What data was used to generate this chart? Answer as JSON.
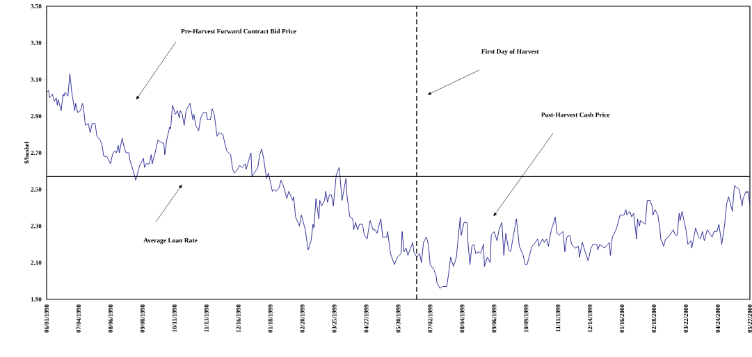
{
  "chart_data": {
    "type": "line",
    "ylabel": "$/bushel",
    "color": "#000080",
    "x": [
      "1998-06-01",
      "1998-06-03",
      "1998-06-04",
      "1998-06-07",
      "1998-06-09",
      "1998-06-11",
      "1998-06-12",
      "1998-06-13",
      "1998-06-16",
      "1998-06-18",
      "1998-06-19",
      "1998-06-20",
      "1998-06-23",
      "1998-06-25",
      "1998-06-27",
      "1998-06-30",
      "1998-07-01",
      "1998-07-03",
      "1998-07-06",
      "1998-07-08",
      "1998-07-09",
      "1998-07-11",
      "1998-07-14",
      "1998-07-16",
      "1998-07-18",
      "1998-07-21",
      "1998-07-23",
      "1998-07-26",
      "1998-07-28",
      "1998-07-30",
      "1998-08-02",
      "1998-08-06",
      "1998-08-08",
      "1998-08-10",
      "1998-08-12",
      "1998-08-14",
      "1998-08-15",
      "1998-08-18",
      "1998-08-20",
      "1998-08-22",
      "1998-08-25",
      "1998-08-26",
      "1998-08-29",
      "1998-09-01",
      "1998-09-05",
      "1998-09-09",
      "1998-09-10",
      "1998-09-12",
      "1998-09-15",
      "1998-09-17",
      "1998-09-18",
      "1998-09-21",
      "1998-09-24",
      "1998-09-26",
      "1998-09-30",
      "1998-10-01",
      "1998-10-03",
      "1998-10-06",
      "1998-10-07",
      "1998-10-09",
      "1998-10-12",
      "1998-10-14",
      "1998-10-16",
      "1998-10-17",
      "1998-10-19",
      "1998-10-21",
      "1998-10-23",
      "1998-10-27",
      "1998-10-30",
      "1998-10-31",
      "1998-11-02",
      "1998-11-05",
      "1998-11-07",
      "1998-11-10",
      "1998-11-13",
      "1998-11-14",
      "1998-11-17",
      "1998-11-19",
      "1998-11-21",
      "1998-11-24",
      "1998-11-26",
      "1998-11-30",
      "1998-12-02",
      "1998-12-04",
      "1998-12-08",
      "1998-12-10",
      "1998-12-12",
      "1998-12-15",
      "1998-12-17",
      "1998-12-20",
      "1998-12-23",
      "1998-12-24",
      "1998-12-29",
      "1998-12-30",
      "1999-01-05",
      "1999-01-07",
      "1999-01-09",
      "1999-01-11",
      "1999-01-14",
      "1999-01-16",
      "1999-01-20",
      "1999-01-22",
      "1999-01-24",
      "1999-01-27",
      "1999-01-29",
      "1999-02-01",
      "1999-02-04",
      "1999-02-06",
      "1999-02-10",
      "1999-02-11",
      "1999-02-13",
      "1999-02-17",
      "1999-02-19",
      "1999-02-21",
      "1999-02-23",
      "1999-02-26",
      "1999-03-01",
      "1999-03-03",
      "1999-03-04",
      "1999-03-06",
      "1999-03-09",
      "1999-03-10",
      "1999-03-12",
      "1999-03-15",
      "1999-03-16",
      "1999-03-18",
      "1999-03-20",
      "1999-03-22",
      "1999-03-24",
      "1999-03-27",
      "1999-03-30",
      "1999-04-02",
      "1999-04-06",
      "1999-04-07",
      "1999-04-10",
      "1999-04-13",
      "1999-04-14",
      "1999-04-16",
      "1999-04-18",
      "1999-04-20",
      "1999-04-23",
      "1999-04-25",
      "1999-04-28",
      "1999-04-29",
      "1999-05-01",
      "1999-05-04",
      "1999-05-06",
      "1999-05-08",
      "1999-05-09",
      "1999-05-12",
      "1999-05-14",
      "1999-05-18",
      "1999-05-19",
      "1999-05-22",
      "1999-05-26",
      "1999-05-29",
      "1999-06-02",
      "1999-06-03",
      "1999-06-05",
      "1999-06-07",
      "1999-06-09",
      "1999-06-11",
      "1999-06-14",
      "1999-06-15",
      "1999-06-18",
      "1999-06-21",
      "1999-06-23",
      "1999-06-25",
      "1999-06-28",
      "1999-06-30",
      "1999-07-02",
      "1999-07-06",
      "1999-07-08",
      "1999-07-09",
      "1999-07-12",
      "1999-07-15",
      "1999-07-19",
      "1999-07-21",
      "1999-07-23",
      "1999-07-26",
      "1999-07-29",
      "1999-08-02",
      "1999-08-03",
      "1999-08-06",
      "1999-08-09",
      "1999-08-10",
      "1999-08-12",
      "1999-08-14",
      "1999-08-16",
      "1999-08-18",
      "1999-08-21",
      "1999-08-23",
      "1999-08-26",
      "1999-08-27",
      "1999-08-30",
      "1999-09-02",
      "1999-09-03",
      "1999-09-06",
      "1999-09-09",
      "1999-09-11",
      "1999-09-14",
      "1999-09-16",
      "1999-09-18",
      "1999-09-21",
      "1999-09-23",
      "1999-09-29",
      "1999-10-02",
      "1999-10-06",
      "1999-10-08",
      "1999-10-10",
      "1999-10-12",
      "1999-10-15",
      "1999-10-17",
      "1999-10-21",
      "1999-10-22",
      "1999-10-26",
      "1999-10-28",
      "1999-10-30",
      "1999-11-01",
      "1999-11-04",
      "1999-11-06",
      "1999-11-08",
      "1999-11-10",
      "1999-11-12",
      "1999-11-16",
      "1999-11-18",
      "1999-11-20",
      "1999-11-23",
      "1999-11-25",
      "1999-11-29",
      "1999-12-02",
      "1999-12-03",
      "1999-12-06",
      "1999-12-09",
      "1999-12-12",
      "1999-12-15",
      "1999-12-17",
      "1999-12-21",
      "1999-12-22",
      "1999-12-24",
      "1999-12-29",
      "2000-01-03",
      "2000-01-04",
      "2000-01-06",
      "2000-01-09",
      "2000-01-11",
      "2000-01-14",
      "2000-01-18",
      "2000-01-20",
      "2000-01-21",
      "2000-01-24",
      "2000-01-26",
      "2000-01-28",
      "2000-01-31",
      "2000-02-01",
      "2000-02-03",
      "2000-02-04",
      "2000-02-09",
      "2000-02-11",
      "2000-02-14",
      "2000-02-16",
      "2000-02-17",
      "2000-02-19",
      "2000-02-22",
      "2000-02-24",
      "2000-02-25",
      "2000-02-28",
      "2000-03-01",
      "2000-03-04",
      "2000-03-09",
      "2000-03-11",
      "2000-03-13",
      "2000-03-15",
      "2000-03-16",
      "2000-03-18",
      "2000-03-22",
      "2000-03-24",
      "2000-03-27",
      "2000-03-28",
      "2000-04-01",
      "2000-04-04",
      "2000-04-06",
      "2000-04-08",
      "2000-04-10",
      "2000-04-13",
      "2000-04-18",
      "2000-04-20",
      "2000-04-23",
      "2000-04-25",
      "2000-04-28",
      "2000-05-01",
      "2000-05-03",
      "2000-05-05",
      "2000-05-09",
      "2000-05-11",
      "2000-05-16",
      "2000-05-19",
      "2000-05-20",
      "2000-05-23",
      "2000-05-24",
      "2000-05-25",
      "2000-05-27"
    ],
    "values": [
      3.03,
      3.04,
      3.0,
      3.02,
      2.98,
      3.0,
      2.96,
      2.99,
      2.93,
      3.02,
      3.01,
      3.03,
      3.01,
      3.13,
      3.03,
      2.93,
      2.97,
      2.92,
      2.93,
      2.97,
      2.95,
      2.85,
      2.86,
      2.81,
      2.86,
      2.86,
      2.79,
      2.77,
      2.75,
      2.68,
      2.68,
      2.64,
      2.69,
      2.71,
      2.7,
      2.74,
      2.7,
      2.78,
      2.73,
      2.7,
      2.7,
      2.66,
      2.61,
      2.55,
      2.63,
      2.67,
      2.62,
      2.64,
      2.64,
      2.69,
      2.64,
      2.7,
      2.77,
      2.76,
      2.75,
      2.69,
      2.77,
      2.84,
      2.83,
      2.96,
      2.91,
      2.93,
      2.89,
      2.93,
      2.91,
      2.85,
      2.93,
      2.97,
      2.88,
      2.91,
      2.85,
      2.82,
      2.89,
      2.92,
      2.92,
      2.88,
      2.88,
      2.94,
      2.91,
      2.79,
      2.81,
      2.8,
      2.75,
      2.71,
      2.69,
      2.61,
      2.59,
      2.61,
      2.63,
      2.62,
      2.64,
      2.61,
      2.7,
      2.57,
      2.62,
      2.69,
      2.72,
      2.67,
      2.56,
      2.59,
      2.49,
      2.5,
      2.49,
      2.51,
      2.55,
      2.51,
      2.45,
      2.49,
      2.44,
      2.46,
      2.35,
      2.3,
      2.36,
      2.32,
      2.28,
      2.17,
      2.22,
      2.31,
      2.29,
      2.45,
      2.34,
      2.44,
      2.41,
      2.44,
      2.49,
      2.43,
      2.47,
      2.47,
      2.41,
      2.58,
      2.62,
      2.44,
      2.56,
      2.47,
      2.35,
      2.34,
      2.28,
      2.32,
      2.28,
      2.31,
      2.31,
      2.25,
      2.23,
      2.27,
      2.33,
      2.28,
      2.28,
      2.26,
      2.28,
      2.34,
      2.24,
      2.24,
      2.27,
      2.15,
      2.09,
      2.13,
      2.15,
      2.27,
      2.16,
      2.18,
      2.14,
      2.17,
      2.21,
      2.16,
      2.13,
      2.15,
      2.1,
      2.21,
      2.24,
      2.2,
      2.09,
      2.06,
      2.03,
      1.99,
      1.96,
      1.97,
      1.97,
      2.04,
      2.13,
      2.08,
      2.13,
      2.35,
      2.25,
      2.32,
      2.32,
      2.21,
      2.09,
      2.19,
      2.2,
      2.15,
      2.16,
      2.15,
      2.2,
      2.08,
      2.13,
      2.1,
      2.25,
      2.27,
      2.22,
      2.28,
      2.32,
      2.14,
      2.26,
      2.17,
      2.16,
      2.34,
      2.19,
      2.14,
      2.09,
      2.09,
      2.13,
      2.19,
      2.2,
      2.23,
      2.19,
      2.23,
      2.21,
      2.23,
      2.19,
      2.28,
      2.31,
      2.35,
      2.26,
      2.25,
      2.27,
      2.16,
      2.24,
      2.25,
      2.2,
      2.18,
      2.19,
      2.13,
      2.21,
      2.16,
      2.11,
      2.18,
      2.2,
      2.2,
      2.17,
      2.2,
      2.18,
      2.21,
      2.14,
      2.24,
      2.27,
      2.3,
      2.36,
      2.36,
      2.39,
      2.36,
      2.38,
      2.35,
      2.37,
      2.23,
      2.34,
      2.3,
      2.33,
      2.31,
      2.44,
      2.44,
      2.41,
      2.36,
      2.39,
      2.36,
      2.29,
      2.23,
      2.19,
      2.23,
      2.24,
      2.28,
      2.25,
      2.25,
      2.37,
      2.33,
      2.38,
      2.28,
      2.2,
      2.22,
      2.18,
      2.29,
      2.24,
      2.23,
      2.27,
      2.22,
      2.28,
      2.24,
      2.27,
      2.27,
      2.31,
      2.2,
      2.31,
      2.42,
      2.46,
      2.38,
      2.52,
      2.5,
      2.41,
      2.45,
      2.49,
      2.48,
      2.49,
      2.42
    ],
    "xlim": [
      "1998-06-01",
      "2000-05-27"
    ],
    "xticks": [
      {
        "value": "1998-06-01",
        "label": "06/01/1998"
      },
      {
        "value": "1998-07-04",
        "label": "07/04/1998"
      },
      {
        "value": "1998-08-06",
        "label": "08/06/1998"
      },
      {
        "value": "1998-09-08",
        "label": "09/08/1998"
      },
      {
        "value": "1998-10-11",
        "label": "10/11/1998"
      },
      {
        "value": "1998-11-13",
        "label": "11/13/1998"
      },
      {
        "value": "1998-12-16",
        "label": "12/16/1998"
      },
      {
        "value": "1999-01-18",
        "label": "01/18/1999"
      },
      {
        "value": "1999-02-20",
        "label": "02/20/1999"
      },
      {
        "value": "1999-03-25",
        "label": "03/25/1999"
      },
      {
        "value": "1999-04-27",
        "label": "04/27/1999"
      },
      {
        "value": "1999-05-30",
        "label": "05/30/1999"
      },
      {
        "value": "1999-07-02",
        "label": "07/02/1999"
      },
      {
        "value": "1999-08-04",
        "label": "08/04/1999"
      },
      {
        "value": "1999-09-06",
        "label": "09/06/1999"
      },
      {
        "value": "1999-10-09",
        "label": "10/09/1999"
      },
      {
        "value": "1999-11-11",
        "label": "11/11/1999"
      },
      {
        "value": "1999-12-14",
        "label": "12/14/1999"
      },
      {
        "value": "2000-01-16",
        "label": "01/16/2000"
      },
      {
        "value": "2000-02-18",
        "label": "02/18/2000"
      },
      {
        "value": "2000-03-22",
        "label": "03/22/2000"
      },
      {
        "value": "2000-04-24",
        "label": "04/24/2000"
      },
      {
        "value": "2000-05-27",
        "label": "05/27/2000"
      }
    ],
    "ylim": [
      1.9,
      3.5
    ],
    "yticks": [
      {
        "value": 1.9,
        "label": "1.90"
      },
      {
        "value": 2.1,
        "label": "2.10"
      },
      {
        "value": 2.3,
        "label": "2.30"
      },
      {
        "value": 2.5,
        "label": "2.50"
      },
      {
        "value": 2.7,
        "label": "2.70"
      },
      {
        "value": 2.9,
        "label": "2.90"
      },
      {
        "value": 3.1,
        "label": "3.10"
      },
      {
        "value": 3.3,
        "label": "3.30"
      },
      {
        "value": 3.5,
        "label": "3.50"
      }
    ],
    "ref_lines": [
      {
        "axis": "y",
        "value": 2.57,
        "color": "#000000",
        "line_style": "solid"
      },
      {
        "axis": "x",
        "value": "1999-06-18",
        "color": "#000000",
        "line_style": "dashed"
      }
    ],
    "annotations": [
      "Pre-Harvest Forward Contract Bid Price",
      "Average Loan Rate",
      "First Day of Harvest",
      "Post-Harvest Cash Price"
    ]
  }
}
